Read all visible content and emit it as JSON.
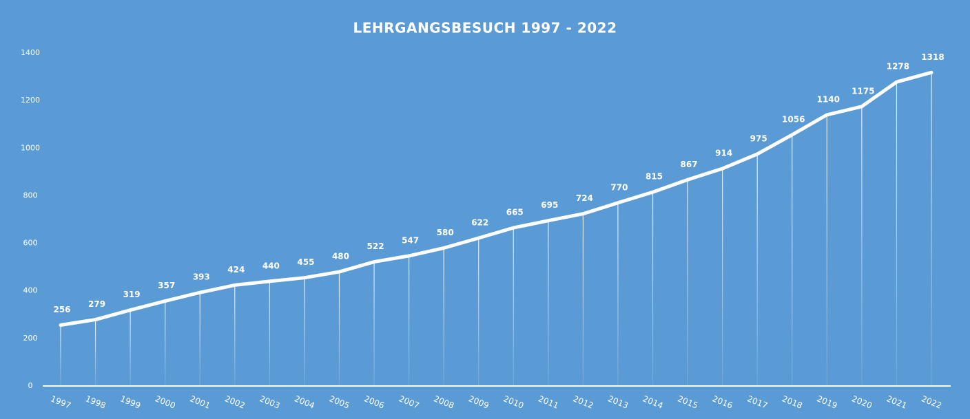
{
  "chart_data": {
    "type": "line",
    "title": "LEHRGANGSBESUCH 1997 - 2022",
    "categories": [
      "1997",
      "1998",
      "1999",
      "2000",
      "2001",
      "2002",
      "2003",
      "2004",
      "2005",
      "2006",
      "2007",
      "2008",
      "2009",
      "2010",
      "2011",
      "2012",
      "2013",
      "2014",
      "2015",
      "2016",
      "2017",
      "2018",
      "2019",
      "2020",
      "2021",
      "2022"
    ],
    "values": [
      256,
      279,
      319,
      357,
      393,
      424,
      440,
      455,
      480,
      522,
      547,
      580,
      622,
      665,
      695,
      724,
      770,
      815,
      867,
      914,
      975,
      1056,
      1140,
      1175,
      1278,
      1318
    ],
    "color": "#ffffff",
    "drop_lines": true,
    "ylim": [
      0,
      1400
    ],
    "yticks": [
      0,
      200,
      400,
      600,
      800,
      1000,
      1200,
      1400
    ],
    "grid": false
  }
}
